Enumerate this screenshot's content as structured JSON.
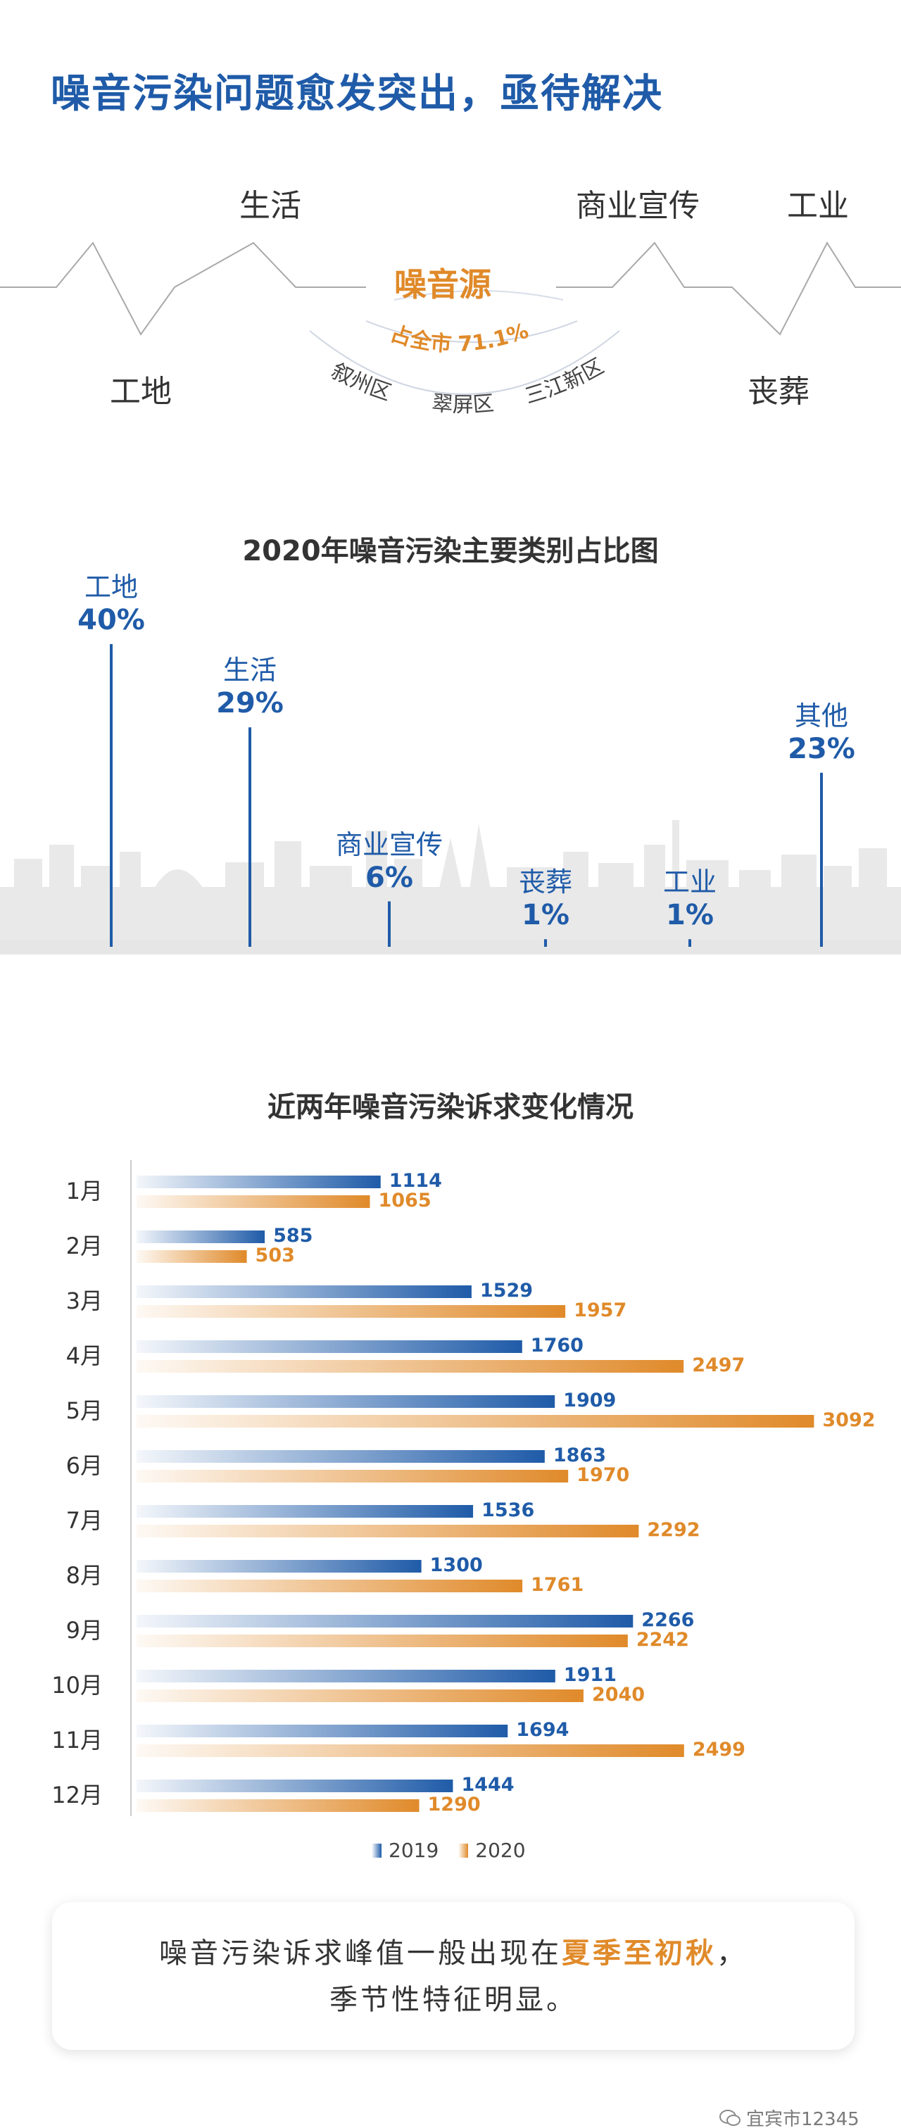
{
  "heading": "噪音污染问题愈发突出，亟待解决",
  "sources": {
    "center_title": "噪音源",
    "share_text": "占全市 71.1%",
    "districts": [
      "叙州区",
      "翠屏区",
      "三江新区"
    ],
    "items": [
      "生活",
      "商业宣传",
      "工业",
      "工地",
      "丧葬"
    ]
  },
  "chart_data": [
    {
      "type": "bar",
      "title": "2020年噪音污染主要类别占比图",
      "categories": [
        "工地",
        "生活",
        "商业宣传",
        "丧葬",
        "工业",
        "其他"
      ],
      "values": [
        40,
        29,
        6,
        1,
        1,
        23
      ],
      "labels": [
        "40%",
        "29%",
        "6%",
        "1%",
        "1%",
        "23%"
      ],
      "unit": "%",
      "color": "#1f5ba8"
    },
    {
      "type": "bar",
      "orientation": "horizontal",
      "title": "近两年噪音污染诉求变化情况",
      "categories": [
        "1月",
        "2月",
        "3月",
        "4月",
        "5月",
        "6月",
        "7月",
        "8月",
        "9月",
        "10月",
        "11月",
        "12月"
      ],
      "series": [
        {
          "name": "2019",
          "color": "#1f5ba8",
          "values": [
            1114,
            585,
            1529,
            1760,
            1909,
            1863,
            1536,
            1300,
            2266,
            1911,
            1694,
            1444
          ]
        },
        {
          "name": "2020",
          "color": "#e08a2a",
          "values": [
            1065,
            503,
            1957,
            2497,
            3092,
            1970,
            2292,
            1761,
            2242,
            2040,
            2499,
            1290
          ]
        }
      ],
      "xlim": [
        0,
        3200
      ],
      "legend": "bottom"
    }
  ],
  "conclusion": {
    "prefix": "噪音污染诉求峰值一般出现在",
    "highlight": "夏季至初秋",
    "suffix": "，",
    "line2": "季节性特征明显。"
  },
  "watermark": "宜宾市12345"
}
